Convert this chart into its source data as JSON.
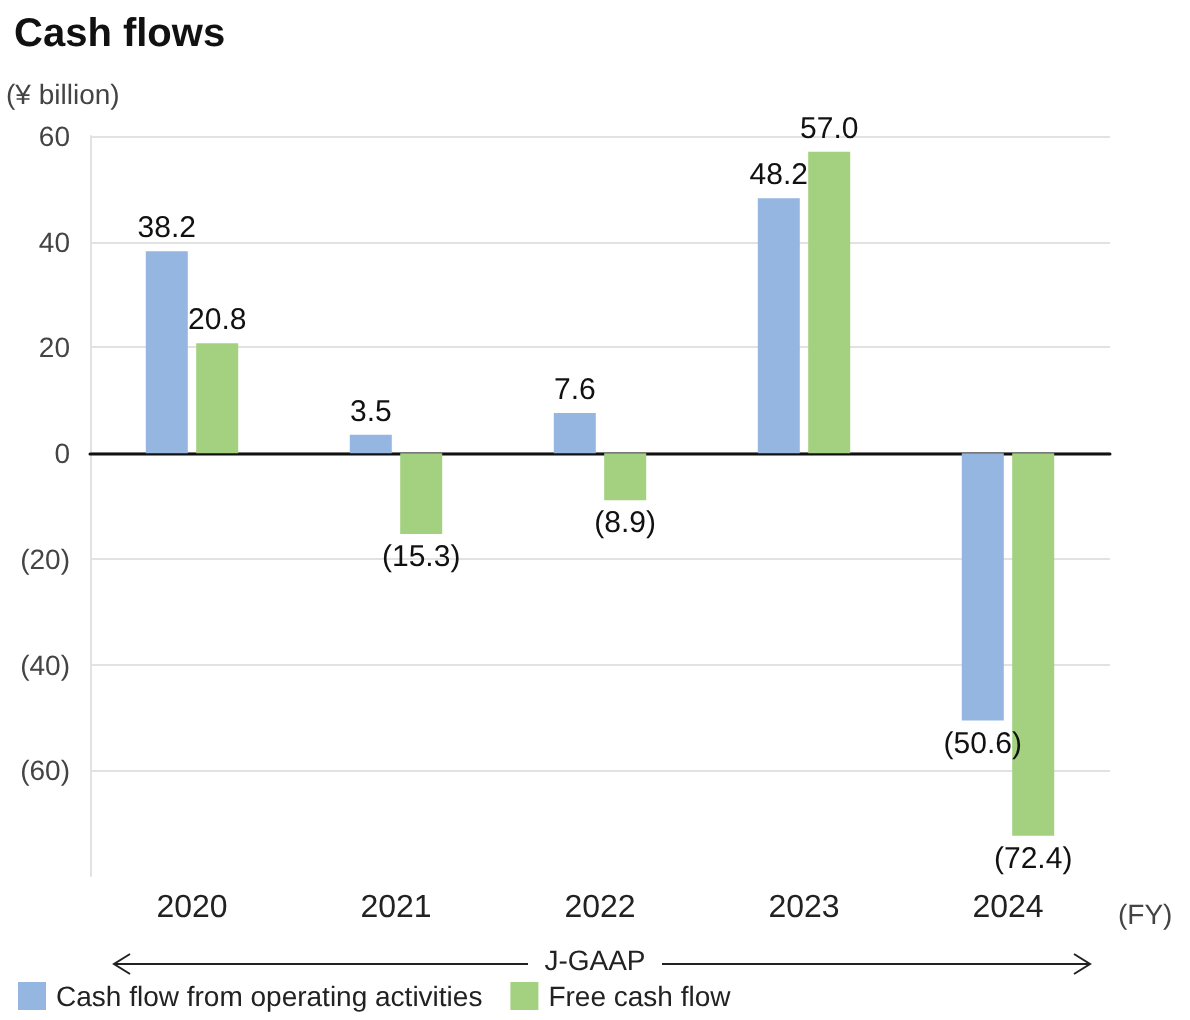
{
  "chart_data": {
    "type": "bar",
    "title": "Cash flows",
    "ylabel": "(¥ billion)",
    "xlabel": "(FY)",
    "categories": [
      "2020",
      "2021",
      "2022",
      "2023",
      "2024"
    ],
    "series": [
      {
        "name": "Cash flow from operating activities",
        "color": "#95b6e0",
        "values": [
          38.2,
          3.5,
          7.6,
          48.2,
          -50.6
        ],
        "value_labels": [
          "38.2",
          "3.5",
          "7.6",
          "48.2",
          "(50.6)"
        ]
      },
      {
        "name": "Free cash flow",
        "color": "#a3d17f",
        "values": [
          20.8,
          -15.3,
          -8.9,
          57.0,
          -72.4
        ],
        "value_labels": [
          "20.8",
          "(15.3)",
          "(8.9)",
          "57.0",
          "(72.4)"
        ]
      }
    ],
    "ylim": [
      -80,
      60
    ],
    "yticks": [
      {
        "value": -60,
        "label": "(60)"
      },
      {
        "value": -40,
        "label": "(40)"
      },
      {
        "value": -20,
        "label": "(20)"
      },
      0,
      20,
      40,
      60
    ],
    "grid": "y",
    "legend": "bottom left",
    "annotations": [
      "J-GAAP"
    ]
  }
}
